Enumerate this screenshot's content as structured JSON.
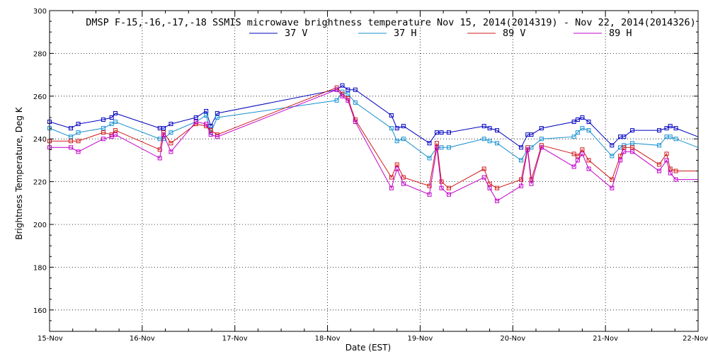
{
  "chart_data": {
    "type": "line",
    "title": "DMSP F-15,-16,-17,-18 SSMIS microwave brightness temperature Nov 15, 2014(2014319) - Nov 22, 2014(2014326)",
    "xlabel": "Date (EST)",
    "ylabel": "Brightness Temperature, Deg K",
    "ylim": [
      150,
      300
    ],
    "xlim": [
      0,
      7
    ],
    "yticks": [
      160,
      180,
      200,
      220,
      240,
      260,
      280,
      300
    ],
    "xticks": [
      0,
      1,
      2,
      3,
      4,
      5,
      6,
      7
    ],
    "xtick_labels": [
      "15-Nov",
      "16-Nov",
      "17-Nov",
      "18-Nov",
      "19-Nov",
      "20-Nov",
      "21-Nov",
      "22-Nov"
    ],
    "x_units": "days since 15-Nov",
    "grid": true,
    "legend_position": "top-center",
    "series": [
      {
        "name": "37 V",
        "color": "#0000c0",
        "x": [
          0,
          0.23,
          0.31,
          0.58,
          0.67,
          0.71,
          1.19,
          1.23,
          1.31,
          1.58,
          1.69,
          1.74,
          1.81,
          3.1,
          3.16,
          3.22,
          3.3,
          3.69,
          3.75,
          3.82,
          4.1,
          4.18,
          4.23,
          4.31,
          4.69,
          4.75,
          4.83,
          5.09,
          5.16,
          5.2,
          5.31,
          5.66,
          5.7,
          5.75,
          5.82,
          6.07,
          6.16,
          6.2,
          6.29,
          6.58,
          6.66,
          6.7,
          6.76,
          7.0
        ],
        "y": [
          248,
          245,
          247,
          249,
          250,
          252,
          245,
          245,
          247,
          250,
          253,
          246,
          252,
          263,
          265,
          263,
          263,
          251,
          245,
          246,
          238,
          243,
          243,
          243,
          246,
          245,
          244,
          236,
          242,
          242,
          245,
          248,
          249,
          250,
          248,
          237,
          241,
          241,
          244,
          244,
          245,
          246,
          245,
          241
        ]
      },
      {
        "name": "37 H",
        "color": "#1890d0",
        "x": [
          0,
          0.23,
          0.31,
          0.58,
          0.67,
          0.71,
          1.19,
          1.23,
          1.31,
          1.58,
          1.69,
          1.74,
          1.81,
          3.1,
          3.16,
          3.22,
          3.3,
          3.69,
          3.75,
          3.82,
          4.1,
          4.18,
          4.23,
          4.31,
          4.69,
          4.75,
          4.83,
          5.09,
          5.16,
          5.2,
          5.31,
          5.66,
          5.7,
          5.75,
          5.82,
          6.07,
          6.16,
          6.2,
          6.29,
          6.58,
          6.66,
          6.7,
          6.76,
          7.0
        ],
        "y": [
          245,
          241,
          243,
          245,
          247,
          248,
          240,
          240,
          243,
          248,
          251,
          243,
          250,
          258,
          262,
          261,
          257,
          245,
          239,
          240,
          231,
          236,
          236,
          236,
          240,
          239,
          238,
          230,
          235,
          236,
          240,
          241,
          243,
          245,
          244,
          232,
          236,
          237,
          238,
          237,
          241,
          241,
          240,
          236
        ]
      },
      {
        "name": "89 V",
        "color": "#d01818",
        "x": [
          0,
          0.23,
          0.31,
          0.58,
          0.67,
          0.71,
          1.19,
          1.23,
          1.31,
          1.58,
          1.69,
          1.74,
          1.81,
          3.1,
          3.16,
          3.22,
          3.3,
          3.69,
          3.75,
          3.82,
          4.1,
          4.18,
          4.23,
          4.31,
          4.69,
          4.75,
          4.83,
          5.09,
          5.16,
          5.2,
          5.31,
          5.66,
          5.7,
          5.75,
          5.82,
          6.07,
          6.16,
          6.2,
          6.29,
          6.58,
          6.66,
          6.7,
          6.76,
          7.0
        ],
        "y": [
          239,
          239,
          239,
          243,
          242,
          244,
          235,
          243,
          238,
          247,
          246,
          244,
          242,
          264,
          261,
          259,
          249,
          222,
          228,
          222,
          218,
          238,
          220,
          217,
          226,
          219,
          217,
          221,
          236,
          221,
          237,
          233,
          232,
          235,
          230,
          221,
          232,
          236,
          236,
          228,
          233,
          226,
          225,
          225
        ]
      },
      {
        "name": "89 H",
        "color": "#c000c8",
        "x": [
          0,
          0.23,
          0.31,
          0.58,
          0.67,
          0.71,
          1.19,
          1.23,
          1.31,
          1.58,
          1.69,
          1.74,
          1.81,
          3.1,
          3.16,
          3.22,
          3.3,
          3.69,
          3.75,
          3.82,
          4.1,
          4.18,
          4.23,
          4.31,
          4.69,
          4.75,
          4.83,
          5.09,
          5.16,
          5.2,
          5.31,
          5.66,
          5.7,
          5.75,
          5.82,
          6.07,
          6.16,
          6.2,
          6.29,
          6.58,
          6.66,
          6.7,
          6.76,
          7.0
        ],
        "y": [
          236,
          236,
          234,
          240,
          241,
          242,
          231,
          242,
          234,
          248,
          247,
          242,
          241,
          263,
          260,
          258,
          248,
          217,
          226,
          219,
          214,
          236,
          217,
          214,
          222,
          217,
          211,
          218,
          235,
          219,
          236,
          227,
          230,
          233,
          226,
          217,
          230,
          234,
          234,
          225,
          230,
          224,
          221,
          221
        ]
      }
    ]
  }
}
